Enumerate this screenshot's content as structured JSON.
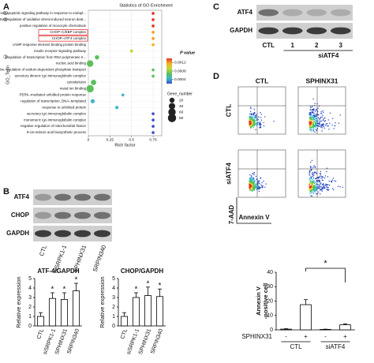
{
  "panel_labels": [
    "A",
    "B",
    "C",
    "D"
  ],
  "chart_data": [
    {
      "type": "dot",
      "title": "Statistics of GO Enrichment",
      "x_label": "Rich factor",
      "y_label": "GO_Term",
      "categories": [
        "intrinsic apoptotic signaling pathway in response to endopl...",
        "negative regulation of oxidative stress-induced neuron deat...",
        "positive regulation of monocyte chemotaxis",
        "CHOP–C/EBP complex",
        "CHOP–ATF4 complex",
        "cAMP response element binding protein binding",
        "insulin receptor signaling pathway",
        "regulation of transcription from RNA polymerase II...",
        "nucleic acid binding",
        "positive regulation of sodium-dependent phosphate transport",
        "secretory dimeric IgA immunoglobulin complex",
        "cytoskeleton",
        "metal ion binding",
        "PERK–mediated unfolded protein response",
        "regulation of transcription, DNA–templated",
        "response to unfolded protein",
        "secretory IgA immunoglobulin complex",
        "monomeric IgA immunoglobulin complex",
        "negative regulation of mitochondrial fission",
        "9-cis-retinoic acid biosynthetic process"
      ],
      "values": [
        0.75,
        0.75,
        0.75,
        0.75,
        0.75,
        0.75,
        0.5,
        0.1,
        0.02,
        0.75,
        0.75,
        0.06,
        0.02,
        0.4,
        0.05,
        0.33,
        0.75,
        0.75,
        0.75,
        0.75
      ],
      "sizes": [
        2,
        2,
        2,
        2,
        2,
        2,
        3,
        12,
        45,
        2,
        2,
        25,
        60,
        2,
        10,
        4,
        2,
        2,
        2,
        2
      ],
      "colors": [
        "#e8312a",
        "#e8312a",
        "#e8312a",
        "#f39b1f",
        "#f39b1f",
        "#f3b21f",
        "#c6d83a",
        "#5fbf5e",
        "#5fbf5e",
        "#5fbf5e",
        "#5fbf5e",
        "#5fbf5e",
        "#5fbf5e",
        "#3fb7c8",
        "#3fb7c8",
        "#3fb7c8",
        "#3a4fd0",
        "#3a4fd0",
        "#3a4fd0",
        "#3a4fd0"
      ],
      "row_markers": [
        "①",
        "②",
        null,
        null,
        null,
        null,
        null,
        "③",
        null,
        null,
        null,
        null,
        null,
        null,
        null,
        null,
        null,
        null,
        null,
        null
      ],
      "highlight": [
        false,
        false,
        false,
        true,
        true,
        false,
        false,
        false,
        false,
        false,
        false,
        false,
        false,
        false,
        false,
        false,
        false,
        false,
        false,
        false
      ],
      "xlim": [
        0,
        0.85
      ],
      "xticks": [
        0,
        0.25,
        0.5,
        0.75
      ],
      "color_legend": {
        "title": "P value",
        "lim": [
          0.0014,
          0.0002
        ],
        "ticks": [
          0.0012,
          0.0008,
          0.0004
        ],
        "colors": [
          "#e8312a",
          "#f3b21f",
          "#c6d83a",
          "#5fbf5e",
          "#3fb7c8",
          "#3a4fd0"
        ]
      },
      "size_legend": {
        "title": "Gene_number",
        "values": [
          20,
          40,
          60,
          80
        ]
      }
    },
    {
      "type": "bar",
      "title": "ATF-4/GAPDH",
      "y_label": "Relative expression",
      "categories": [
        "CTL",
        "siSRPK1-1",
        "SPHINX31",
        "SRPIN340"
      ],
      "values": [
        1,
        2.9,
        2.8,
        3.7
      ],
      "errors": [
        0.4,
        0.6,
        0.7,
        0.8
      ],
      "annotations": [
        null,
        "*",
        "*",
        "*"
      ],
      "ylim": [
        0,
        5
      ],
      "yticks": [
        0,
        1,
        2,
        3,
        4,
        5
      ]
    },
    {
      "type": "bar",
      "title": "CHOP/GAPDH",
      "y_label": "Relative expression",
      "categories": [
        "CTL",
        "siSRPK1-1",
        "SPHINX31",
        "SRPIN340"
      ],
      "values": [
        1,
        3,
        3.2,
        3.1
      ],
      "errors": [
        0.4,
        0.5,
        0.9,
        0.8
      ],
      "annotations": [
        null,
        "*",
        "*",
        "*"
      ],
      "ylim": [
        0,
        5
      ],
      "yticks": [
        0,
        1,
        2,
        3,
        4,
        5
      ]
    },
    {
      "type": "bar",
      "y_label": [
        "Annexin V",
        "-positive cell"
      ],
      "categories": [
        "-",
        "+",
        "-",
        "+"
      ],
      "category_row_label": "SPHINX31",
      "groups": [
        "CTL",
        "siATF4"
      ],
      "significance": "*",
      "values": [
        0.5,
        17.5,
        0.3,
        3.5
      ],
      "errors": [
        0.3,
        3.5,
        0.2,
        0.7
      ],
      "ylim": [
        0,
        40
      ],
      "yticks": [
        0,
        10,
        20,
        30,
        40
      ]
    }
  ],
  "blots": [
    {
      "rows": [
        "ATF4",
        "CHOP",
        "GAPDH"
      ],
      "lanes": [
        "CTL",
        "siSRPK1-1",
        "SPHINX31",
        "SRPIN340"
      ]
    },
    {
      "rows": [
        "ATF4",
        "GAPDH"
      ],
      "lanes": [
        "CTL",
        "1",
        "2",
        "3"
      ],
      "lane_group": "siATF4"
    }
  ],
  "flow": {
    "columns": [
      "CTL",
      "SPHINX31"
    ],
    "rows": [
      "CTL",
      "siATF4"
    ],
    "y_label": "7-AAD",
    "x_label": "Annexin V"
  }
}
